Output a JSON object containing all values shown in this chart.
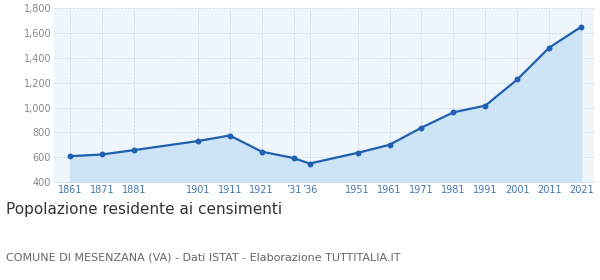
{
  "years": [
    1861,
    1871,
    1881,
    1901,
    1911,
    1921,
    1931,
    1936,
    1951,
    1961,
    1971,
    1981,
    1991,
    2001,
    2011,
    2021
  ],
  "population": [
    608,
    622,
    657,
    730,
    775,
    645,
    593,
    549,
    635,
    700,
    838,
    962,
    1016,
    1227,
    1484,
    1651
  ],
  "ylim": [
    400,
    1800
  ],
  "xlim": [
    1856,
    2025
  ],
  "yticks": [
    400,
    600,
    800,
    1000,
    1200,
    1400,
    1600,
    1800
  ],
  "xtick_positions": [
    1861,
    1871,
    1881,
    1901,
    1911,
    1921,
    1931,
    1936,
    1951,
    1961,
    1971,
    1981,
    1991,
    2001,
    2011,
    2021
  ],
  "xtick_labels": [
    "1861",
    "1871",
    "1881",
    "1901",
    "1911",
    "1921",
    "’31",
    "’36",
    "1951",
    "1961",
    "1971",
    "1981",
    "1991",
    "2001",
    "2011",
    "2021"
  ],
  "line_color": "#2060b0",
  "fill_color": "#cce4f5",
  "marker_color": "#2060b0",
  "bg_color": "#eef5fb",
  "grid_color": "#c8dce8",
  "plot_bg": "#eef5fb",
  "tick_color": "#4477aa",
  "ytick_color": "#888888",
  "title": "Popolazione residente ai censimenti",
  "subtitle": "COMUNE DI MESENZANA (VA) - Dati ISTAT - Elaborazione TUTTITALIA.IT",
  "title_fontsize": 11,
  "subtitle_fontsize": 8
}
